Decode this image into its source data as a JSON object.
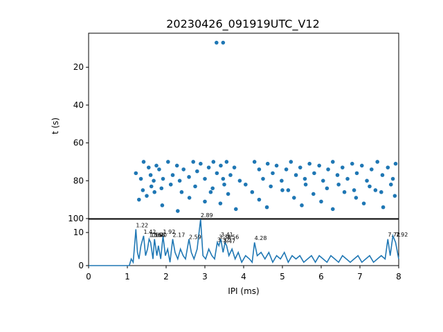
{
  "figure": {
    "title": "20230426_091919UTC_V12"
  },
  "chart_data": [
    {
      "type": "scatter",
      "panel": "top",
      "title": "20230426_091919UTC_V12",
      "xlabel": "",
      "ylabel": "t (s)",
      "xlim": [
        0,
        8
      ],
      "ylim": [
        100,
        2
      ],
      "y_inverted": true,
      "yticks": [
        "20",
        "40",
        "60",
        "80",
        "100"
      ],
      "grid": false,
      "marker_color": "#1f77b4",
      "points": [
        [
          3.3,
          7
        ],
        [
          3.47,
          7
        ],
        [
          1.22,
          76
        ],
        [
          1.35,
          79
        ],
        [
          1.42,
          70
        ],
        [
          1.55,
          73
        ],
        [
          1.6,
          77
        ],
        [
          1.68,
          80
        ],
        [
          1.75,
          72
        ],
        [
          1.82,
          74
        ],
        [
          1.92,
          79
        ],
        [
          2.05,
          70
        ],
        [
          2.17,
          77
        ],
        [
          2.28,
          72
        ],
        [
          2.35,
          80
        ],
        [
          2.45,
          74
        ],
        [
          2.59,
          78
        ],
        [
          2.7,
          70
        ],
        [
          2.8,
          75
        ],
        [
          2.89,
          71
        ],
        [
          3.0,
          79
        ],
        [
          3.1,
          73
        ],
        [
          3.22,
          70
        ],
        [
          3.31,
          76
        ],
        [
          3.41,
          72
        ],
        [
          3.47,
          79
        ],
        [
          3.56,
          70
        ],
        [
          3.66,
          77
        ],
        [
          3.76,
          73
        ],
        [
          3.9,
          80
        ],
        [
          4.28,
          70
        ],
        [
          4.4,
          74
        ],
        [
          4.5,
          79
        ],
        [
          4.62,
          71
        ],
        [
          4.75,
          76
        ],
        [
          4.85,
          72
        ],
        [
          4.98,
          80
        ],
        [
          5.1,
          74
        ],
        [
          5.22,
          70
        ],
        [
          5.35,
          77
        ],
        [
          5.46,
          73
        ],
        [
          5.58,
          79
        ],
        [
          5.7,
          71
        ],
        [
          5.82,
          76
        ],
        [
          5.95,
          72
        ],
        [
          6.05,
          80
        ],
        [
          6.18,
          74
        ],
        [
          6.3,
          70
        ],
        [
          6.42,
          77
        ],
        [
          6.55,
          73
        ],
        [
          6.68,
          79
        ],
        [
          6.8,
          71
        ],
        [
          6.92,
          76
        ],
        [
          7.05,
          72
        ],
        [
          7.18,
          80
        ],
        [
          7.3,
          74
        ],
        [
          7.45,
          70
        ],
        [
          7.58,
          77
        ],
        [
          7.72,
          73
        ],
        [
          7.85,
          79
        ],
        [
          7.92,
          71
        ],
        [
          1.3,
          90
        ],
        [
          1.5,
          88
        ],
        [
          1.7,
          86
        ],
        [
          1.9,
          93
        ],
        [
          2.3,
          96
        ],
        [
          2.6,
          89
        ],
        [
          3.0,
          91
        ],
        [
          3.2,
          84
        ],
        [
          3.4,
          92
        ],
        [
          3.6,
          87
        ],
        [
          3.8,
          95
        ],
        [
          4.4,
          90
        ],
        [
          4.6,
          94
        ],
        [
          5.0,
          85
        ],
        [
          5.3,
          89
        ],
        [
          5.5,
          93
        ],
        [
          5.8,
          87
        ],
        [
          6.0,
          91
        ],
        [
          6.3,
          95
        ],
        [
          6.6,
          86
        ],
        [
          6.9,
          89
        ],
        [
          7.1,
          92
        ],
        [
          7.4,
          85
        ],
        [
          7.6,
          94
        ],
        [
          7.9,
          88
        ],
        [
          1.4,
          85
        ],
        [
          1.62,
          83
        ],
        [
          1.88,
          84
        ],
        [
          2.12,
          82
        ],
        [
          2.4,
          86
        ],
        [
          2.75,
          83
        ],
        [
          3.15,
          86
        ],
        [
          3.5,
          82
        ],
        [
          4.05,
          82
        ],
        [
          4.22,
          86
        ],
        [
          4.7,
          83
        ],
        [
          5.15,
          85
        ],
        [
          5.6,
          82
        ],
        [
          6.15,
          84
        ],
        [
          6.45,
          82
        ],
        [
          6.85,
          85
        ],
        [
          7.25,
          83
        ],
        [
          7.55,
          86
        ],
        [
          7.8,
          82
        ]
      ]
    },
    {
      "type": "line",
      "panel": "bottom",
      "xlabel": "IPI (ms)",
      "ylabel": "",
      "xlim": [
        0,
        8
      ],
      "ylim": [
        0,
        14
      ],
      "xticks": [
        "0",
        "1",
        "2",
        "3",
        "4",
        "5",
        "6",
        "7",
        "8"
      ],
      "yticks": [
        "0",
        "10"
      ],
      "grid": false,
      "line_color": "#1f77b4",
      "x": [
        0,
        1.0,
        1.05,
        1.1,
        1.15,
        1.2,
        1.22,
        1.26,
        1.3,
        1.35,
        1.42,
        1.47,
        1.52,
        1.56,
        1.6,
        1.66,
        1.7,
        1.76,
        1.8,
        1.86,
        1.92,
        1.98,
        2.04,
        2.1,
        2.17,
        2.23,
        2.3,
        2.37,
        2.44,
        2.5,
        2.59,
        2.65,
        2.72,
        2.8,
        2.89,
        2.95,
        3.02,
        3.1,
        3.18,
        3.25,
        3.32,
        3.36,
        3.41,
        3.47,
        3.52,
        3.56,
        3.62,
        3.7,
        3.78,
        3.86,
        3.95,
        4.05,
        4.15,
        4.22,
        4.28,
        4.35,
        4.45,
        4.55,
        4.65,
        4.75,
        4.85,
        4.95,
        5.05,
        5.15,
        5.25,
        5.35,
        5.45,
        5.55,
        5.65,
        5.75,
        5.85,
        5.95,
        6.05,
        6.15,
        6.25,
        6.35,
        6.45,
        6.55,
        6.65,
        6.75,
        6.85,
        6.95,
        7.05,
        7.15,
        7.25,
        7.35,
        7.45,
        7.55,
        7.65,
        7.72,
        7.78,
        7.85,
        7.92,
        8.0
      ],
      "y": [
        0,
        0,
        0,
        2,
        1,
        8,
        11,
        4,
        2,
        6,
        9,
        3,
        5,
        8,
        7,
        2,
        8,
        3,
        6,
        2,
        9,
        3,
        5,
        1,
        8,
        4,
        2,
        5,
        3,
        2,
        8,
        4,
        2,
        5,
        14,
        3,
        2,
        5,
        3,
        2,
        7,
        6,
        8,
        4,
        7,
        6,
        3,
        5,
        2,
        4,
        1,
        3,
        2,
        1,
        7,
        3,
        4,
        2,
        4,
        1,
        3,
        2,
        4,
        1,
        3,
        2,
        3,
        1,
        2,
        3,
        1,
        3,
        2,
        1,
        3,
        2,
        1,
        3,
        2,
        1,
        2,
        3,
        1,
        2,
        3,
        1,
        2,
        3,
        2,
        8,
        3,
        9,
        7,
        2
      ],
      "annotations": [
        {
          "x": 1.22,
          "y": 11,
          "label": "1.22"
        },
        {
          "x": 1.42,
          "y": 9,
          "label": "1.42"
        },
        {
          "x": 1.56,
          "y": 8,
          "label": "1.56"
        },
        {
          "x": 1.6,
          "y": 8,
          "label": "1.60"
        },
        {
          "x": 1.66,
          "y": 8,
          "label": "1.66"
        },
        {
          "x": 1.7,
          "y": 8,
          "label": "1.70"
        },
        {
          "x": 1.92,
          "y": 9,
          "label": "1.92"
        },
        {
          "x": 2.17,
          "y": 8,
          "label": "2.17"
        },
        {
          "x": 2.59,
          "y": 7.4,
          "label": "2.59"
        },
        {
          "x": 2.89,
          "y": 14,
          "label": "2.89"
        },
        {
          "x": 3.32,
          "y": 6.6,
          "label": "3.32"
        },
        {
          "x": 3.36,
          "y": 7.4,
          "label": "3.36"
        },
        {
          "x": 3.41,
          "y": 8.1,
          "label": "3.41"
        },
        {
          "x": 3.47,
          "y": 6.2,
          "label": "3.47"
        },
        {
          "x": 3.56,
          "y": 7.4,
          "label": "3.56"
        },
        {
          "x": 4.28,
          "y": 7.1,
          "label": "4.28"
        },
        {
          "x": 7.72,
          "y": 8.2,
          "label": "7.72"
        },
        {
          "x": 7.92,
          "y": 8.2,
          "label": "7.92"
        }
      ]
    }
  ]
}
